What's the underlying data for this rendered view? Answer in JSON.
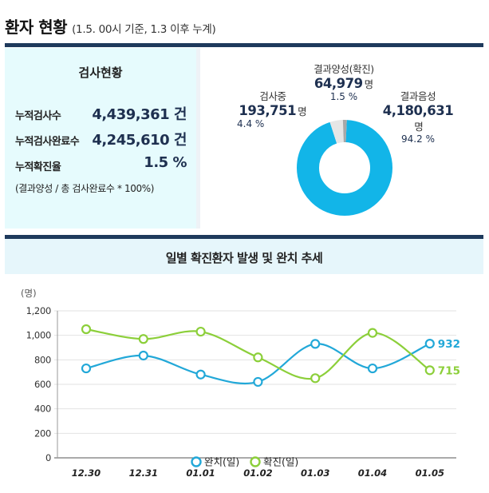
{
  "header": {
    "title": "환자 현황",
    "subtitle": "(1.5. 00시 기준, 1.3 이후 누계)"
  },
  "testing": {
    "heading": "검사현황",
    "rows": [
      {
        "label": "누적검사수",
        "value": "4,439,361 건"
      },
      {
        "label": "누적검사완료수",
        "value": "4,245,610 건"
      },
      {
        "label": "누적확진율",
        "value": "1.5 %"
      }
    ],
    "note": "(결과양성 / 총 검사완료수 * 100%)"
  },
  "donut": {
    "segments": [
      {
        "label": "결과음성",
        "count": "4,180,631",
        "unit": "명",
        "pct": "94.2 %",
        "value": 94.2,
        "color": "#12b5e8"
      },
      {
        "label": "검사중",
        "count": "193,751",
        "unit": "명",
        "pct": "4.4 %",
        "value": 4.4,
        "color": "#e6e6e6"
      },
      {
        "label": "결과양성(확진)",
        "count": "64,979",
        "unit": "명",
        "pct": "1.5 %",
        "value": 1.5,
        "color": "#a8a8a8"
      }
    ]
  },
  "chart_data": {
    "type": "line",
    "title": "일별 확진환자 발생 및 완치 추세",
    "ylabel": "(명)",
    "xlabel": "",
    "ylim": [
      0,
      1200
    ],
    "yticks": [
      "1,200",
      "1,000",
      "800",
      "600",
      "400",
      "200",
      "0"
    ],
    "categories": [
      "12.30",
      "12.31",
      "01.01",
      "01.02",
      "01.03",
      "01.04",
      "01.05"
    ],
    "series": [
      {
        "name": "완치(일)",
        "color": "#22a8d8",
        "values": [
          730,
          835,
          680,
          620,
          930,
          730,
          932
        ],
        "end_label": "932"
      },
      {
        "name": "확진(일)",
        "color": "#8ccf3a",
        "values": [
          1050,
          970,
          1030,
          820,
          650,
          1020,
          715
        ],
        "end_label": "715"
      }
    ],
    "legend_position": "bottom",
    "grid": true
  }
}
